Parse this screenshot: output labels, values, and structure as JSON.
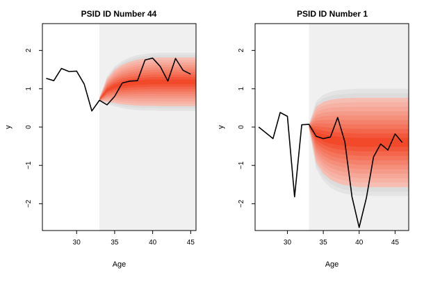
{
  "chart_data": [
    {
      "type": "line",
      "title": "PSID ID Number  44",
      "xlabel": "Age",
      "ylabel": "y",
      "xlim": [
        25.5,
        45.7
      ],
      "ylim": [
        -2.7,
        2.7
      ],
      "xticks": [
        30,
        35,
        40,
        45
      ],
      "yticks": [
        -2,
        -1,
        0,
        1,
        2
      ],
      "forecast_start": 33,
      "series": [
        {
          "x": [
            26,
            27,
            28,
            29,
            30,
            31,
            32,
            33,
            34,
            35,
            36,
            37,
            38,
            39,
            40,
            41,
            42,
            43,
            44,
            45
          ],
          "values": [
            1.27,
            1.21,
            1.53,
            1.45,
            1.46,
            1.12,
            0.42,
            0.7,
            0.58,
            0.8,
            1.15,
            1.2,
            1.21,
            1.75,
            1.8,
            1.58,
            1.2,
            1.79,
            1.48,
            1.38
          ]
        }
      ],
      "forecast_band": {
        "x": [
          33,
          34,
          35,
          36,
          37,
          38,
          39,
          40,
          41,
          42,
          43,
          44,
          45,
          45.7
        ],
        "median": [
          0.72,
          0.96,
          1.06,
          1.11,
          1.14,
          1.16,
          1.17,
          1.18,
          1.18,
          1.18,
          1.18,
          1.18,
          1.18,
          1.18
        ],
        "spread": [
          0.05,
          0.36,
          0.52,
          0.62,
          0.68,
          0.72,
          0.74,
          0.75,
          0.76,
          0.76,
          0.76,
          0.76,
          0.76,
          0.76
        ]
      }
    },
    {
      "type": "line",
      "title": "PSID ID Number  1",
      "xlabel": "Age",
      "ylabel": "y",
      "xlim": [
        25.5,
        46.9
      ],
      "ylim": [
        -2.7,
        2.7
      ],
      "xticks": [
        30,
        35,
        40,
        45
      ],
      "yticks": [
        -2,
        -1,
        0,
        1,
        2
      ],
      "forecast_start": 33,
      "series": [
        {
          "x": [
            26,
            27,
            28,
            29,
            30,
            31,
            32,
            33,
            34,
            35,
            36,
            37,
            38,
            39,
            40,
            41,
            42,
            43,
            44,
            45,
            46
          ],
          "values": [
            0.0,
            -0.15,
            -0.3,
            0.38,
            0.28,
            -1.82,
            0.06,
            0.07,
            -0.24,
            -0.3,
            -0.26,
            0.25,
            -0.38,
            -1.82,
            -2.62,
            -1.85,
            -0.78,
            -0.44,
            -0.6,
            -0.18,
            -0.4
          ]
        }
      ],
      "forecast_band": {
        "x": [
          33,
          34,
          35,
          36,
          37,
          38,
          39,
          40,
          41,
          42,
          43,
          44,
          45,
          46,
          46.9
        ],
        "median": [
          0.02,
          -0.2,
          -0.28,
          -0.33,
          -0.36,
          -0.38,
          -0.39,
          -0.4,
          -0.4,
          -0.4,
          -0.4,
          -0.4,
          -0.4,
          -0.4,
          -0.4
        ],
        "spread": [
          0.05,
          0.88,
          1.12,
          1.25,
          1.32,
          1.36,
          1.38,
          1.4,
          1.4,
          1.4,
          1.4,
          1.4,
          1.4,
          1.4,
          1.4
        ]
      }
    }
  ]
}
